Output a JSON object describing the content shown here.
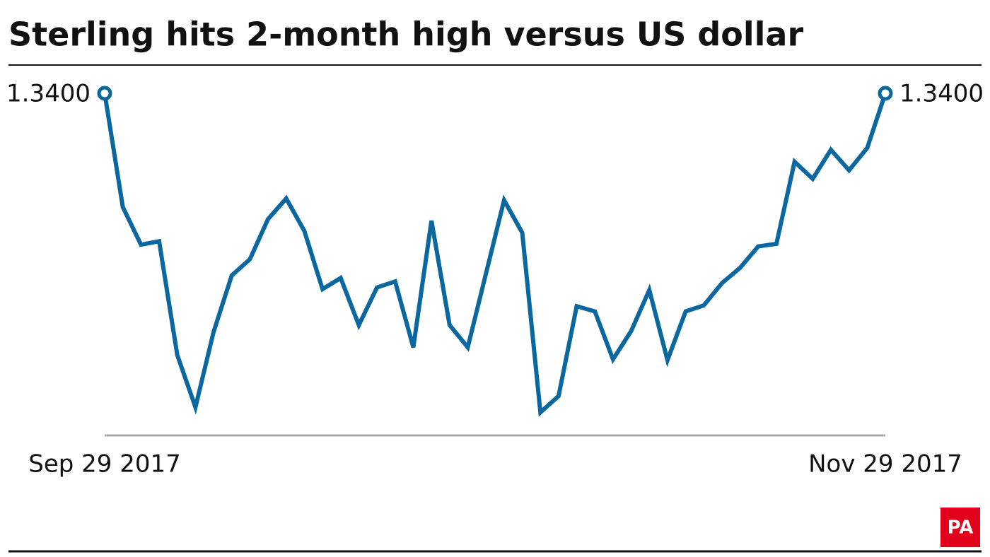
{
  "chart_data": {
    "type": "line",
    "title": "Sterling hits 2-month high versus US dollar",
    "categories": [
      "Sep 29 2017",
      null,
      null,
      null,
      null,
      null,
      null,
      null,
      null,
      null,
      null,
      null,
      null,
      null,
      null,
      null,
      null,
      null,
      null,
      null,
      null,
      null,
      null,
      null,
      null,
      null,
      null,
      null,
      null,
      null,
      null,
      null,
      null,
      null,
      null,
      null,
      null,
      null,
      null,
      null,
      null,
      null,
      null,
      "Nov 29 2017"
    ],
    "series": [
      {
        "color": "#0a679f",
        "values": [
          1.34,
          1.3267,
          1.3223,
          1.3227,
          1.3094,
          1.3033,
          1.3121,
          1.3187,
          1.3206,
          1.3253,
          1.3277,
          1.3239,
          1.3171,
          1.3184,
          1.3129,
          1.3173,
          1.318,
          1.3103,
          1.3251,
          1.3129,
          1.3103,
          1.3189,
          1.3275,
          1.3237,
          1.3027,
          1.3046,
          1.3151,
          1.3145,
          1.3089,
          1.3122,
          1.317,
          1.3088,
          1.3145,
          1.3152,
          1.3178,
          1.3196,
          1.3221,
          1.3224,
          1.332,
          1.33,
          1.3334,
          1.331,
          1.3336,
          1.34
        ],
        "value_labels": [
          "1.3400",
          null,
          null,
          null,
          null,
          null,
          null,
          null,
          null,
          null,
          null,
          null,
          null,
          null,
          null,
          null,
          null,
          null,
          null,
          null,
          null,
          null,
          null,
          null,
          null,
          null,
          null,
          null,
          null,
          null,
          null,
          null,
          null,
          null,
          null,
          null,
          null,
          null,
          null,
          null,
          null,
          null,
          null,
          "1.3400"
        ]
      }
    ],
    "ylim": [
      1.3,
      1.34
    ],
    "source_logo": "PA"
  }
}
